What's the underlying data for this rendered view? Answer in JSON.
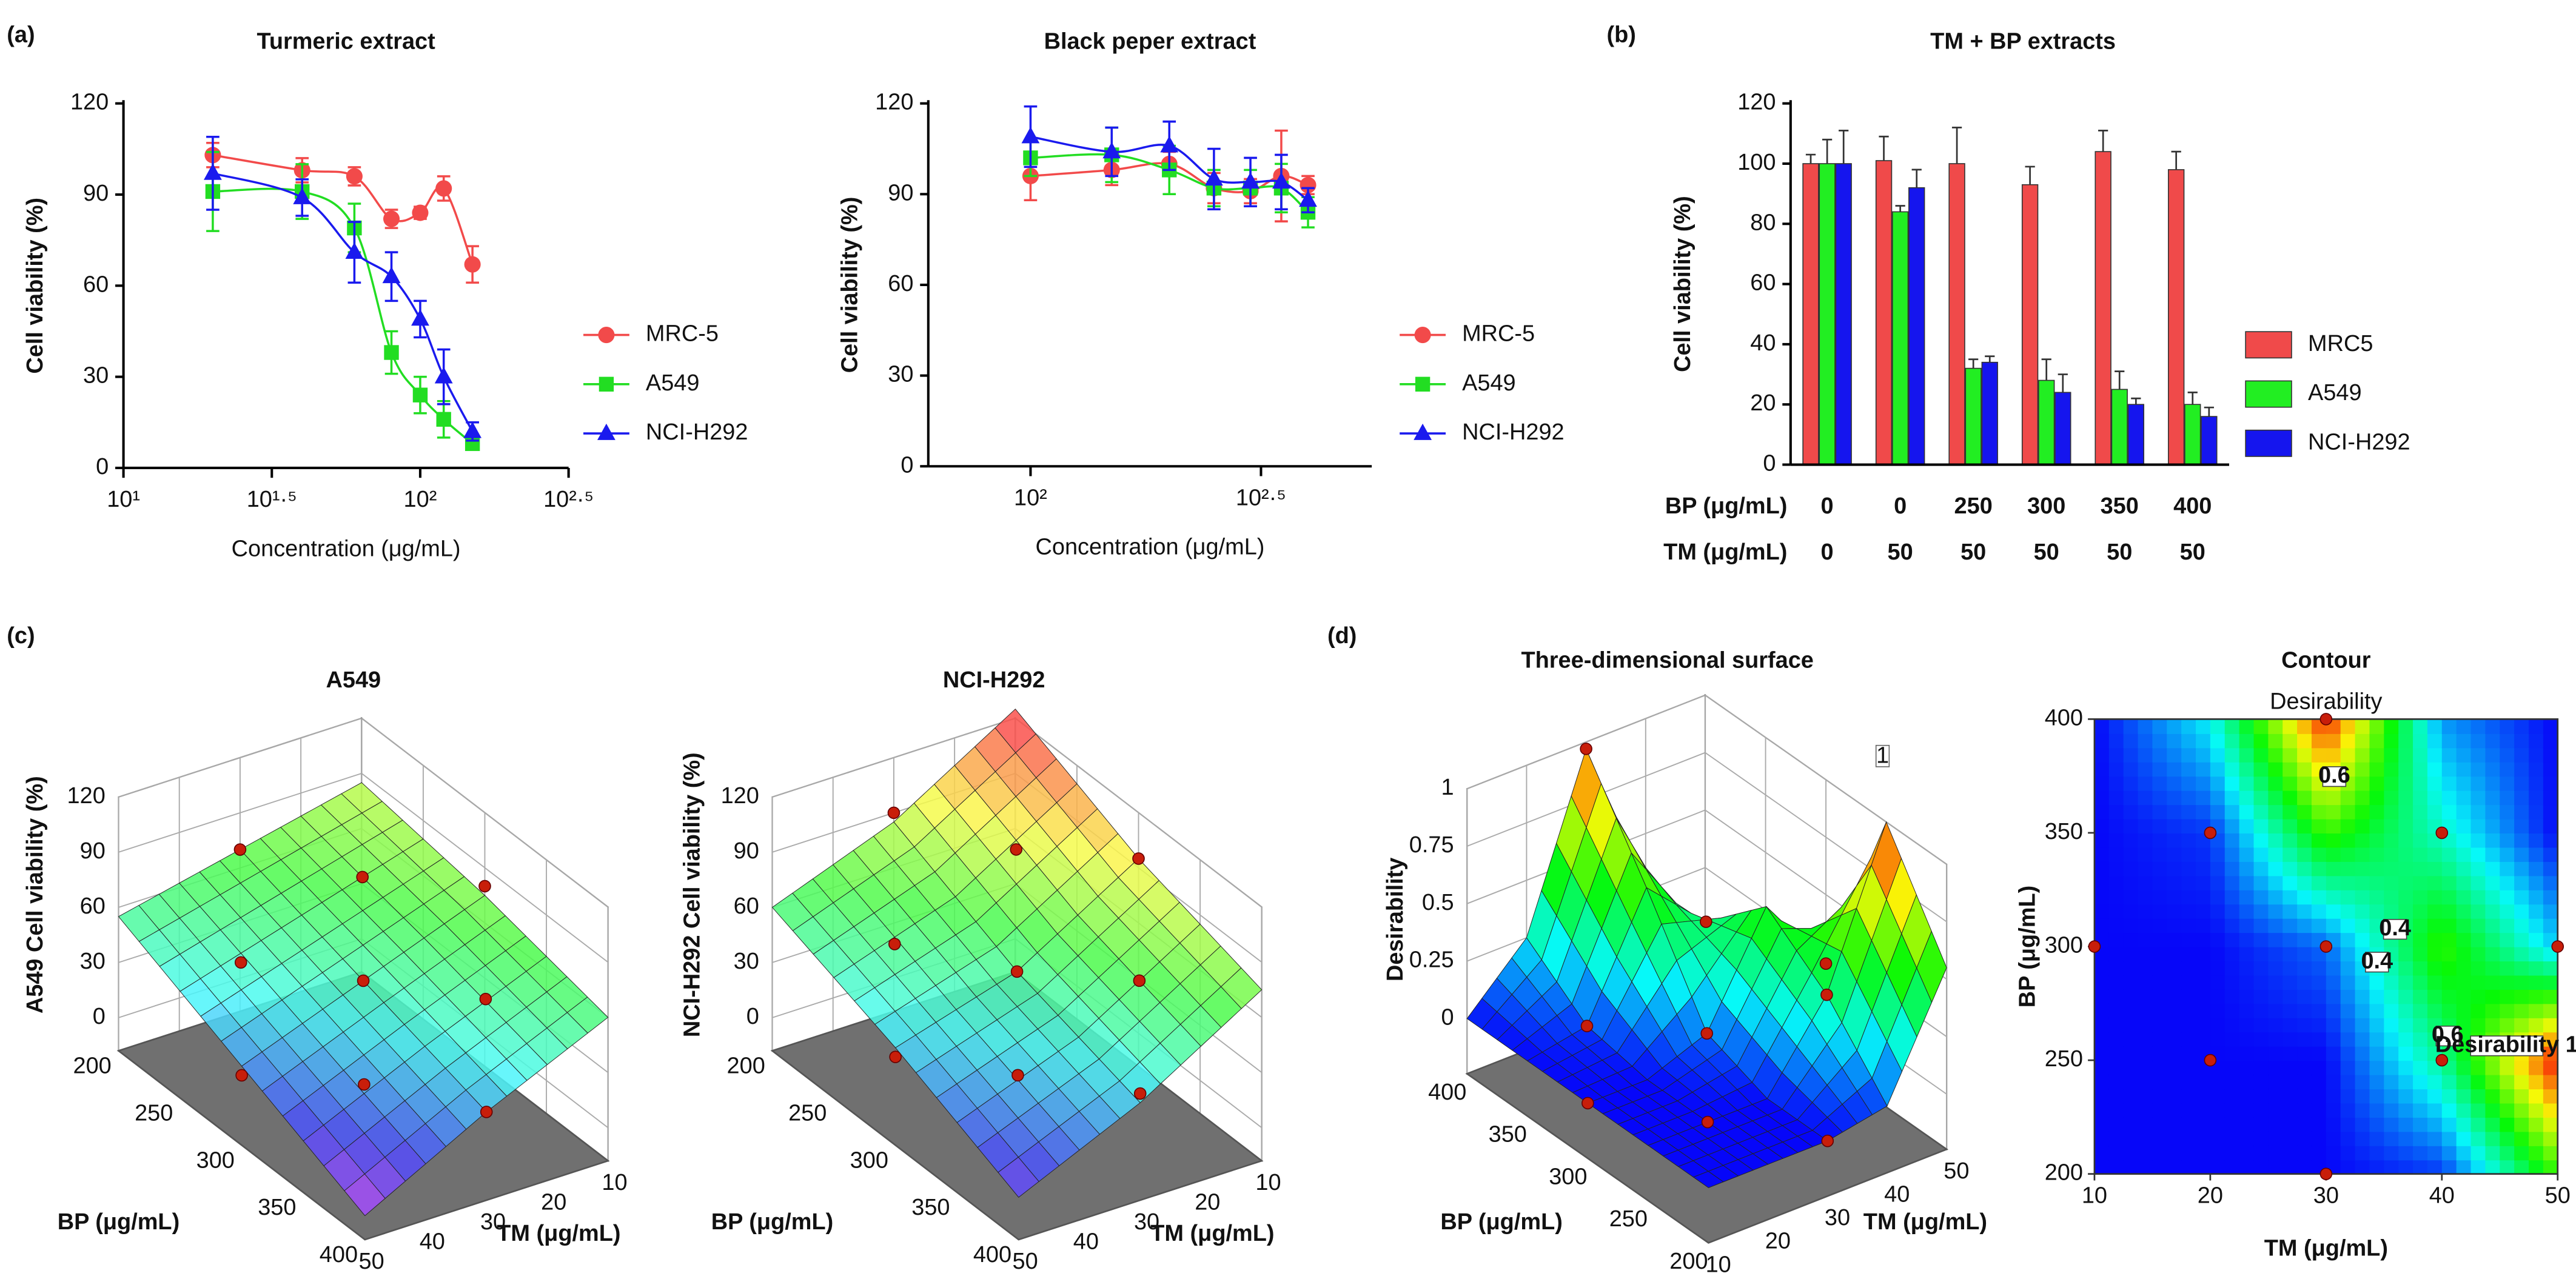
{
  "panel_labels": [
    "(a)",
    "(b)",
    "(c)",
    "(d)"
  ],
  "chart_data": [
    {
      "type": "dose",
      "title": "Turmeric extract",
      "xlabel": "Concentration (μg/mL)",
      "ylabel": "Cell viability (%)",
      "xscale": "log",
      "xlim": [
        10,
        316.23
      ],
      "xticks": [
        {
          "value": 10,
          "label": "10¹"
        },
        {
          "value": 31.62,
          "label": "10¹·⁵"
        },
        {
          "value": 100,
          "label": "10²"
        },
        {
          "value": 316.23,
          "label": "10²·⁵"
        }
      ],
      "ylim": [
        0,
        120
      ],
      "yticks": [
        0,
        30,
        60,
        90,
        120
      ],
      "x": [
        20,
        40,
        60,
        80,
        100,
        120,
        150
      ],
      "series": [
        {
          "name": "MRC-5",
          "color": "#f24a4a",
          "marker": "circle",
          "values": [
            103,
            98,
            96,
            82,
            84,
            92,
            67
          ],
          "errors": [
            4,
            4,
            3,
            3,
            2,
            4,
            6
          ]
        },
        {
          "name": "A549",
          "color": "#22dd22",
          "marker": "square",
          "values": [
            91,
            91,
            79,
            38,
            24,
            16,
            8
          ],
          "errors": [
            13,
            9,
            8,
            7,
            6,
            6,
            2
          ]
        },
        {
          "name": "NCI-H292",
          "color": "#1a1aee",
          "marker": "triangle",
          "values": [
            97,
            89,
            71,
            63,
            49,
            30,
            12
          ],
          "errors": [
            12,
            6,
            10,
            8,
            6,
            9,
            3
          ]
        }
      ]
    },
    {
      "type": "dose",
      "title": "Black peper extract",
      "xlabel": "Concentration (μg/mL)",
      "ylabel": "Cell viability (%)",
      "xscale": "log",
      "xlim": [
        60,
        550
      ],
      "xticks": [
        {
          "value": 100,
          "label": "10²"
        },
        {
          "value": 316.23,
          "label": "10²·⁵"
        }
      ],
      "ylim": [
        0,
        120
      ],
      "yticks": [
        0,
        30,
        60,
        90,
        120
      ],
      "x": [
        100,
        150,
        200,
        250,
        300,
        350,
        400
      ],
      "series": [
        {
          "name": "MRC-5",
          "color": "#f24a4a",
          "marker": "circle",
          "values": [
            96,
            98,
            100,
            92,
            91,
            96,
            93
          ],
          "errors": [
            8,
            5,
            4,
            5,
            4,
            15,
            3
          ]
        },
        {
          "name": "A549",
          "color": "#22dd22",
          "marker": "square",
          "values": [
            102,
            103,
            98,
            92,
            92,
            92,
            84
          ],
          "errors": [
            6,
            9,
            8,
            6,
            6,
            8,
            5
          ]
        },
        {
          "name": "NCI-H292",
          "color": "#1a1aee",
          "marker": "triangle",
          "values": [
            109,
            104,
            106,
            95,
            94,
            94,
            88
          ],
          "errors": [
            10,
            8,
            8,
            10,
            8,
            9,
            4
          ]
        }
      ]
    },
    {
      "type": "bar",
      "title": "TM + BP extracts",
      "ylabel": "Cell viability (%)",
      "xlabel": "BP (μg/mL)",
      "categories": [
        "0",
        "0",
        "250",
        "300",
        "350",
        "400"
      ],
      "xlabel2": "TM (μg/mL)",
      "categories2": [
        "0",
        "50",
        "50",
        "50",
        "50",
        "50"
      ],
      "ylim": [
        0,
        120
      ],
      "yticks": [
        0,
        20,
        40,
        60,
        80,
        100,
        120
      ],
      "series": [
        {
          "name": "MRC5",
          "color": "#f04a4a",
          "values": [
            100,
            101,
            100,
            93,
            104,
            98
          ],
          "errors": [
            3,
            8,
            12,
            6,
            7,
            6
          ]
        },
        {
          "name": "A549",
          "color": "#22ee22",
          "values": [
            100,
            84,
            32,
            28,
            25,
            20
          ],
          "errors": [
            8,
            2,
            3,
            7,
            6,
            4
          ]
        },
        {
          "name": "NCI-H292",
          "color": "#1515ee",
          "values": [
            100,
            92,
            34,
            24,
            20,
            16
          ],
          "errors": [
            11,
            6,
            2,
            6,
            2,
            3
          ]
        }
      ]
    },
    {
      "type": "surface3d",
      "title": "A549",
      "zlabel": "A549 Cell viability (%)",
      "xlabel": "TM (μg/mL)",
      "ylabel": "BP (μg/mL)",
      "xlim": [
        10,
        50
      ],
      "ylim": [
        200,
        400
      ],
      "zlim": [
        0,
        120
      ],
      "xticks": [
        10,
        20,
        30,
        40,
        50
      ],
      "yticks": [
        200,
        250,
        300,
        350,
        400
      ],
      "zticks": [
        0,
        30,
        60,
        90,
        120
      ],
      "x": [
        10,
        30,
        50
      ],
      "y": [
        200,
        300,
        400
      ],
      "z": [
        [
          85,
          70,
          55
        ],
        [
          75,
          50,
          25
        ],
        [
          60,
          30,
          -5
        ]
      ],
      "points": {
        "x": [
          30,
          20,
          40,
          10,
          30,
          50,
          20,
          40,
          30
        ],
        "y": [
          400,
          350,
          350,
          300,
          300,
          300,
          250,
          250,
          200
        ],
        "z": [
          30,
          55,
          30,
          80,
          50,
          20,
          70,
          45,
          70
        ]
      }
    },
    {
      "type": "surface3d",
      "title": "NCI-H292",
      "zlabel": "NCI-H292 Cell viability (%)",
      "xlabel": "TM (μg/mL)",
      "ylabel": "BP (μg/mL)",
      "xlim": [
        10,
        50
      ],
      "ylim": [
        200,
        400
      ],
      "zlim": [
        0,
        120
      ],
      "xticks": [
        10,
        20,
        30,
        40,
        50
      ],
      "yticks": [
        200,
        250,
        300,
        350,
        400
      ],
      "zticks": [
        0,
        30,
        60,
        90,
        120
      ],
      "x": [
        10,
        30,
        50
      ],
      "y": [
        200,
        300,
        400
      ],
      "z": [
        [
          125,
          85,
          60
        ],
        [
          95,
          55,
          35
        ],
        [
          75,
          35,
          5
        ]
      ],
      "points": {
        "x": [
          30,
          20,
          40,
          10,
          30,
          50,
          20,
          40,
          30
        ],
        "y": [
          400,
          350,
          350,
          300,
          300,
          300,
          250,
          250,
          200
        ],
        "z": [
          40,
          65,
          35,
          95,
          55,
          30,
          85,
          55,
          90
        ]
      }
    },
    {
      "type": "surface3d",
      "title": "Three-dimensional surface",
      "zlabel": "Desirability",
      "xlabel": "TM (μg/mL)",
      "ylabel": "BP (μg/mL)",
      "xlim": [
        10,
        50
      ],
      "ylim": [
        200,
        400
      ],
      "zlim": [
        0,
        1
      ],
      "xticks": [
        10,
        20,
        30,
        40,
        50
      ],
      "yticks": [
        200,
        250,
        300,
        350,
        400
      ],
      "zticks": [
        0,
        0.25,
        0.5,
        0.75,
        1
      ],
      "x": [
        10,
        20,
        30,
        40,
        50
      ],
      "y": [
        200,
        250,
        300,
        350,
        400
      ],
      "z": [
        [
          0,
          0,
          0,
          0.05,
          0.55
        ],
        [
          0,
          0,
          0,
          0.35,
          1
        ],
        [
          0,
          0,
          0.1,
          0.55,
          0.2
        ],
        [
          0,
          0.05,
          0.55,
          0.3,
          0
        ],
        [
          0,
          0.25,
          0.97,
          0.15,
          0
        ]
      ],
      "points": {
        "x": [
          30,
          20,
          40,
          10,
          30,
          50,
          20,
          40,
          30
        ],
        "y": [
          400,
          350,
          350,
          300,
          300,
          300,
          250,
          250,
          200
        ],
        "z": [
          0.97,
          0.05,
          0.3,
          0,
          0.1,
          0.2,
          0,
          0.35,
          0
        ]
      },
      "annotations": [
        "1"
      ]
    },
    {
      "type": "contour",
      "title": "Contour",
      "label": "Desirability",
      "xlabel": "TM (μg/mL)",
      "ylabel": "BP (μg/mL)",
      "xlim": [
        10,
        50
      ],
      "ylim": [
        200,
        400
      ],
      "zlim": [
        0,
        1
      ],
      "xticks": [
        10,
        20,
        30,
        40,
        50
      ],
      "yticks": [
        200,
        250,
        300,
        350,
        400
      ],
      "x": [
        10,
        20,
        30,
        40,
        50
      ],
      "y": [
        200,
        250,
        300,
        350,
        400
      ],
      "z": [
        [
          0,
          0,
          0,
          0.05,
          0.55
        ],
        [
          0,
          0,
          0,
          0.35,
          1
        ],
        [
          0,
          0,
          0.1,
          0.55,
          0.2
        ],
        [
          0,
          0.05,
          0.55,
          0.3,
          0
        ],
        [
          0,
          0.25,
          0.97,
          0.15,
          0
        ]
      ],
      "points": {
        "x": [
          30,
          20,
          40,
          10,
          30,
          50,
          20,
          40,
          30
        ],
        "y": [
          400,
          350,
          350,
          300,
          300,
          300,
          250,
          250,
          200
        ]
      },
      "annotations": [
        "0.6",
        "0.4",
        "0.4",
        "0.6",
        "Desirability 1"
      ]
    }
  ]
}
